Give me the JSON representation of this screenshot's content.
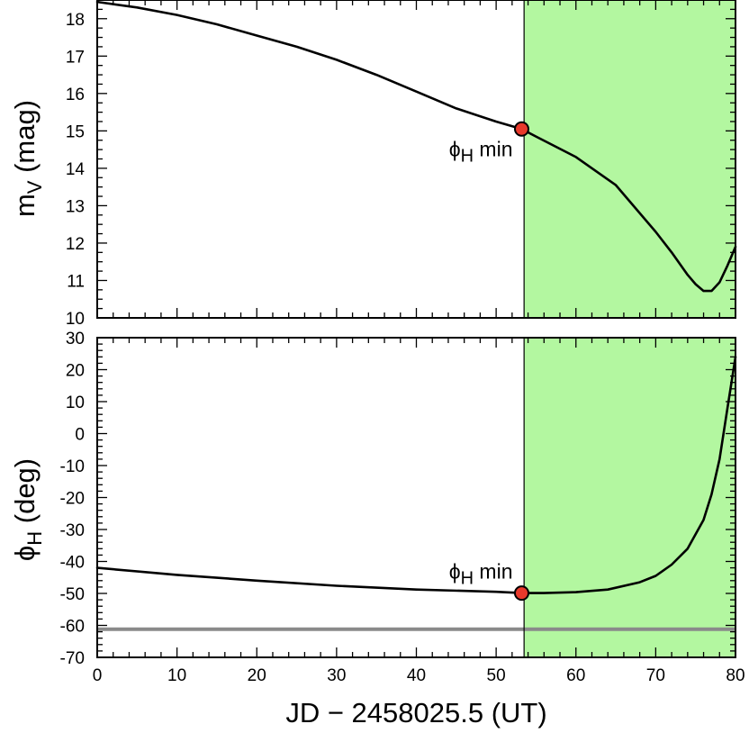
{
  "chart_data": [
    {
      "type": "line",
      "panel": "top",
      "ylabel_main": "m",
      "ylabel_sub": "V",
      "ylabel_unit": " (mag)",
      "xlim": [
        0,
        80
      ],
      "ylim": [
        10,
        18.5
      ],
      "yticks": [
        10,
        11,
        12,
        13,
        14,
        15,
        16,
        17,
        18
      ],
      "grid": false,
      "shaded_region": {
        "x_start": 53.5,
        "x_end": 80,
        "color": "#b3f7a0"
      },
      "vline_x": 53.5,
      "series": [
        {
          "x": [
            0,
            5,
            10,
            15,
            20,
            25,
            30,
            35,
            40,
            45,
            50,
            53.2,
            55,
            60,
            65,
            70,
            72,
            74,
            75,
            76,
            77,
            78,
            79,
            80
          ],
          "y": [
            18.45,
            18.3,
            18.1,
            17.85,
            17.55,
            17.25,
            16.9,
            16.5,
            16.05,
            15.6,
            15.25,
            15.05,
            14.85,
            14.3,
            13.55,
            12.3,
            11.75,
            11.15,
            10.9,
            10.72,
            10.72,
            10.95,
            11.4,
            11.9
          ]
        }
      ],
      "marker": {
        "x": 53.2,
        "y": 15.05,
        "color": "#e8392b",
        "label_main": "ϕ",
        "label_sub": "H",
        "label_rest": " min"
      }
    },
    {
      "type": "line",
      "panel": "bottom",
      "ylabel_main": "ϕ",
      "ylabel_sub": "H",
      "ylabel_unit": " (deg)",
      "xlabel": "JD − 2458025.5 (UT)",
      "xlim": [
        0,
        80
      ],
      "ylim": [
        -70,
        30
      ],
      "yticks": [
        -70,
        -60,
        -50,
        -40,
        -30,
        -20,
        -10,
        0,
        10,
        20,
        30
      ],
      "xticks": [
        0,
        10,
        20,
        30,
        40,
        50,
        60,
        70,
        80
      ],
      "grid": false,
      "shaded_region": {
        "x_start": 53.5,
        "x_end": 80,
        "color": "#b3f7a0"
      },
      "vline_x": 53.5,
      "hline": {
        "y": -61.2,
        "color": "#8a8a8a"
      },
      "series": [
        {
          "x": [
            0,
            10,
            20,
            30,
            40,
            50,
            53.2,
            56,
            60,
            64,
            68,
            70,
            72,
            74,
            76,
            77,
            78,
            79,
            80
          ],
          "y": [
            -42,
            -44.2,
            -46,
            -47.6,
            -48.8,
            -49.5,
            -49.9,
            -49.9,
            -49.6,
            -48.8,
            -46.5,
            -44.5,
            -41,
            -36,
            -27,
            -19,
            -8,
            8,
            24
          ]
        }
      ],
      "marker": {
        "x": 53.2,
        "y": -49.9,
        "color": "#e8392b",
        "label_main": "ϕ",
        "label_sub": "H",
        "label_rest": " min"
      }
    }
  ]
}
